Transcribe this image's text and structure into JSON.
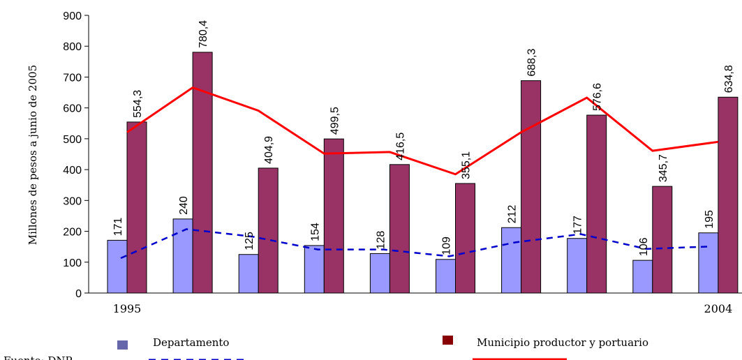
{
  "chart_data": {
    "type": "bar",
    "ylabel": "Millones de pesos a junio de 2005",
    "ylim": [
      0,
      900
    ],
    "yticks": [
      "0",
      "100",
      "200",
      "300",
      "400",
      "500",
      "600",
      "700",
      "800",
      "900"
    ],
    "ytick_values": [
      0,
      100,
      200,
      300,
      400,
      500,
      600,
      700,
      800,
      900
    ],
    "categories": [
      "1995",
      "",
      "",
      "",
      "",
      "",
      "",
      "",
      "",
      "2004"
    ],
    "series": [
      {
        "name": "Departamento",
        "values": [
          171,
          240,
          125,
          154,
          128,
          109,
          212,
          177,
          106,
          195
        ],
        "labels": [
          "171",
          "240",
          "125",
          "154",
          "128",
          "109",
          "212",
          "177",
          "106",
          "195"
        ],
        "color": "#9999ff",
        "trend_color": "#0000cc",
        "trend": [
          113,
          207,
          183,
          141,
          141,
          119,
          164,
          191,
          143,
          151
        ]
      },
      {
        "name": "Municipio productor y portuario",
        "values": [
          554.3,
          780.4,
          404.9,
          499.5,
          416.5,
          355.1,
          688.3,
          576.6,
          345.7,
          634.8
        ],
        "labels": [
          "554,3",
          "780,4",
          "404,9",
          "499,5",
          "416,5",
          "355,1",
          "688,3",
          "576,6",
          "345,7",
          "634,8"
        ],
        "color": "#993366",
        "trend_color": "#ff0000",
        "trend": [
          521,
          666,
          591,
          452,
          457,
          385,
          521,
          633,
          461,
          490
        ]
      }
    ],
    "legend_position": "bottom",
    "grid": false
  },
  "source_text": "Fuente: DNP"
}
